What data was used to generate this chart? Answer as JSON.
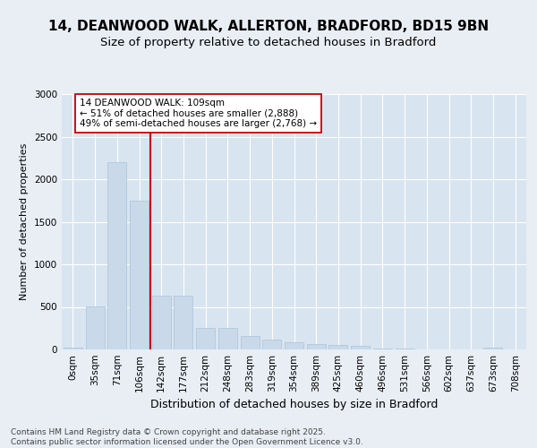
{
  "title1": "14, DEANWOOD WALK, ALLERTON, BRADFORD, BD15 9BN",
  "title2": "Size of property relative to detached houses in Bradford",
  "xlabel": "Distribution of detached houses by size in Bradford",
  "ylabel": "Number of detached properties",
  "categories": [
    "0sqm",
    "35sqm",
    "71sqm",
    "106sqm",
    "142sqm",
    "177sqm",
    "212sqm",
    "248sqm",
    "283sqm",
    "319sqm",
    "354sqm",
    "389sqm",
    "425sqm",
    "460sqm",
    "496sqm",
    "531sqm",
    "566sqm",
    "602sqm",
    "637sqm",
    "673sqm",
    "708sqm"
  ],
  "values": [
    20,
    510,
    2200,
    1750,
    630,
    630,
    255,
    255,
    155,
    120,
    80,
    60,
    50,
    40,
    10,
    8,
    0,
    0,
    0,
    20,
    0
  ],
  "bar_color": "#c9d9ea",
  "bar_edge_color": "#aac4d8",
  "vline_x_index": 3.5,
  "vline_color": "#cc0000",
  "annotation_text": "14 DEANWOOD WALK: 109sqm\n← 51% of detached houses are smaller (2,888)\n49% of semi-detached houses are larger (2,768) →",
  "annotation_box_facecolor": "#ffffff",
  "annotation_box_edgecolor": "#cc0000",
  "ylim": [
    0,
    3000
  ],
  "yticks": [
    0,
    500,
    1000,
    1500,
    2000,
    2500,
    3000
  ],
  "background_color": "#e8eef4",
  "plot_bg_color": "#d8e4f0",
  "footer": "Contains HM Land Registry data © Crown copyright and database right 2025.\nContains public sector information licensed under the Open Government Licence v3.0.",
  "title1_fontsize": 11,
  "title2_fontsize": 9.5,
  "xlabel_fontsize": 9,
  "ylabel_fontsize": 8,
  "tick_fontsize": 7.5,
  "footer_fontsize": 6.5,
  "ann_fontsize": 7.5
}
